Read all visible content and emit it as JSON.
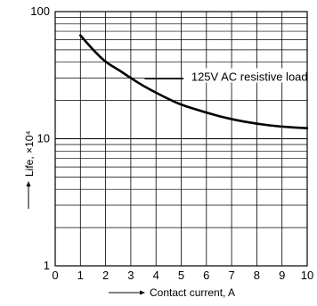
{
  "chart_data": {
    "type": "line",
    "title": "",
    "xlabel": "Contact current, A",
    "ylabel": "Life, ×10⁴",
    "x_scale": "linear",
    "y_scale": "log",
    "xlim": [
      0,
      10
    ],
    "ylim": [
      1,
      100
    ],
    "xticks": [
      "0",
      "1",
      "2",
      "3",
      "4",
      "5",
      "6",
      "7",
      "8",
      "9",
      "10"
    ],
    "yticks": [
      "1",
      "10",
      "100"
    ],
    "grid": true,
    "series": [
      {
        "name": "125V AC resistive load",
        "x": [
          1,
          1.5,
          2,
          2.5,
          3,
          3.5,
          4,
          4.5,
          5,
          6,
          7,
          8,
          9,
          10
        ],
        "y": [
          65,
          50,
          40,
          35,
          30,
          26,
          23,
          20.5,
          18.5,
          16,
          14.2,
          13.1,
          12.4,
          12.1
        ]
      }
    ],
    "annotations": [
      {
        "text": "125V AC resistive load",
        "x": 7.5,
        "y": 30,
        "target_x": 5.0,
        "target_y": 30
      }
    ]
  }
}
